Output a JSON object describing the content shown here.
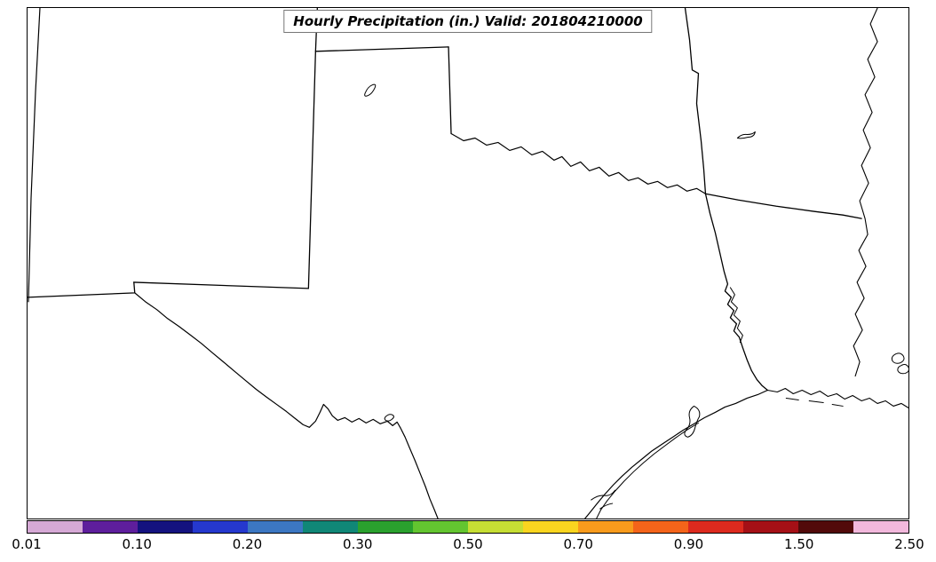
{
  "figure": {
    "title": "Hourly Precipitation (in.) Valid: 201804210000"
  },
  "map": {
    "regions": [
      "New Mexico",
      "Texas",
      "Oklahoma",
      "Arkansas",
      "Louisiana"
    ]
  },
  "colorbar": {
    "ticks": [
      "0.01",
      "0.10",
      "0.20",
      "0.30",
      "0.50",
      "0.70",
      "0.90",
      "1.50",
      "2.50"
    ],
    "colors": [
      "#D6A9D6",
      "#5E1E9C",
      "#14127F",
      "#2538CE",
      "#3C77C2",
      "#108777",
      "#2AA12E",
      "#63C530",
      "#C6DE34",
      "#FAD51F",
      "#F99B1C",
      "#F4641A",
      "#DD2A1E",
      "#A51016",
      "#520A0A",
      "#F2B8DC"
    ]
  }
}
